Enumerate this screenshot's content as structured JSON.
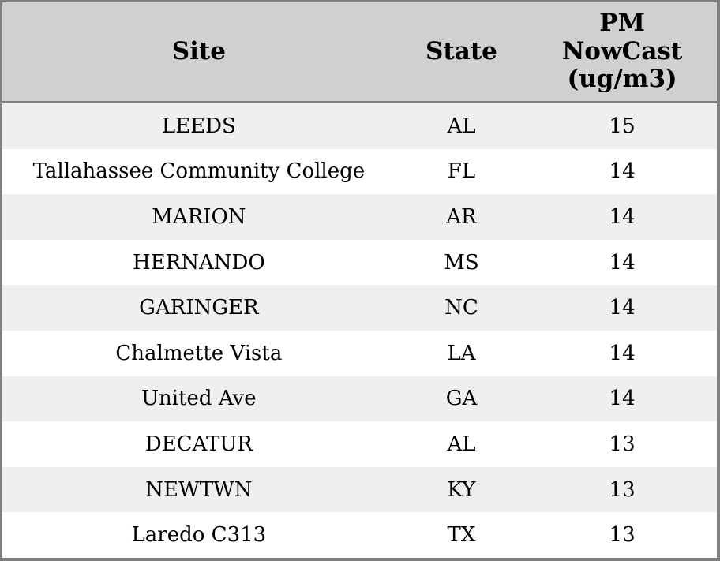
{
  "colors": {
    "border": "#808080",
    "header_bg": "#d0d0d0",
    "row_stripe_bg": "#efefef",
    "row_plain_bg": "#ffffff",
    "text": "#000000"
  },
  "table": {
    "headers": {
      "site": "Site",
      "state": "State",
      "pm": "PM\nNowCast\n(ug/m3)"
    },
    "rows": [
      {
        "site": "LEEDS",
        "state": "AL",
        "pm": "15"
      },
      {
        "site": "Tallahassee Community College",
        "state": "FL",
        "pm": "14"
      },
      {
        "site": "MARION",
        "state": "AR",
        "pm": "14"
      },
      {
        "site": "HERNANDO",
        "state": "MS",
        "pm": "14"
      },
      {
        "site": "GARINGER",
        "state": "NC",
        "pm": "14"
      },
      {
        "site": "Chalmette Vista",
        "state": "LA",
        "pm": "14"
      },
      {
        "site": "United Ave",
        "state": "GA",
        "pm": "14"
      },
      {
        "site": "DECATUR",
        "state": "AL",
        "pm": "13"
      },
      {
        "site": "NEWTWN",
        "state": "KY",
        "pm": "13"
      },
      {
        "site": "Laredo C313",
        "state": "TX",
        "pm": "13"
      }
    ]
  },
  "chart_data": {
    "type": "table",
    "columns": [
      "Site",
      "State",
      "PM NowCast (ug/m3)"
    ],
    "rows": [
      [
        "LEEDS",
        "AL",
        15
      ],
      [
        "Tallahassee Community College",
        "FL",
        14
      ],
      [
        "MARION",
        "AR",
        14
      ],
      [
        "HERNANDO",
        "MS",
        14
      ],
      [
        "GARINGER",
        "NC",
        14
      ],
      [
        "Chalmette Vista",
        "LA",
        14
      ],
      [
        "United Ave",
        "GA",
        14
      ],
      [
        "DECATUR",
        "AL",
        13
      ],
      [
        "NEWTWN",
        "KY",
        13
      ],
      [
        "Laredo C313",
        "TX",
        13
      ]
    ]
  }
}
